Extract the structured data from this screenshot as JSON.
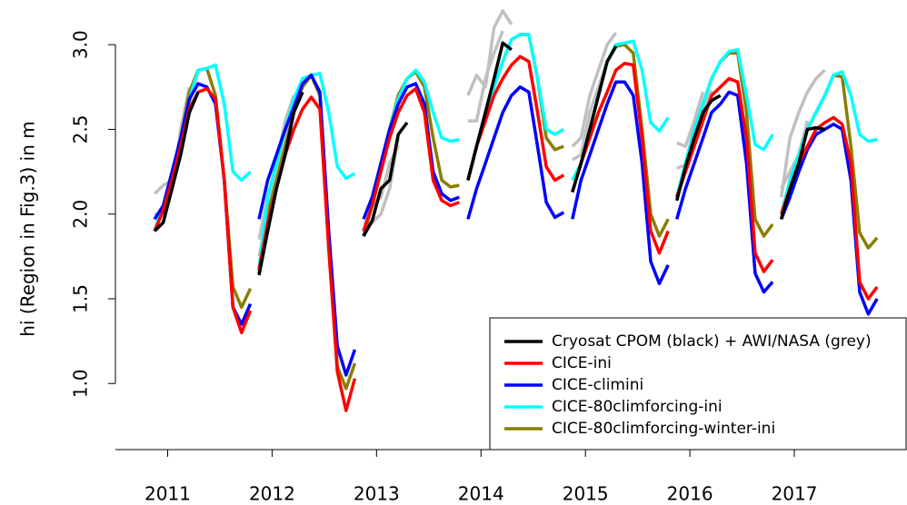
{
  "chart_data": {
    "type": "line",
    "ylabel": "hi (Region in Fig.3) in m",
    "x": [
      [
        2010.875,
        2010.958,
        2011.042,
        2011.125,
        2011.208,
        2011.292,
        2011.375,
        2011.458,
        2011.542,
        2011.625,
        2011.708,
        2011.792
      ],
      [
        2011.875,
        2011.958,
        2012.042,
        2012.125,
        2012.208,
        2012.292,
        2012.375,
        2012.458,
        2012.542,
        2012.625,
        2012.708,
        2012.792
      ],
      [
        2012.875,
        2012.958,
        2013.042,
        2013.125,
        2013.208,
        2013.292,
        2013.375,
        2013.458,
        2013.542,
        2013.625,
        2013.708,
        2013.792
      ],
      [
        2013.875,
        2013.958,
        2014.042,
        2014.125,
        2014.208,
        2014.292,
        2014.375,
        2014.458,
        2014.542,
        2014.625,
        2014.708,
        2014.792
      ],
      [
        2014.875,
        2014.958,
        2015.042,
        2015.125,
        2015.208,
        2015.292,
        2015.375,
        2015.458,
        2015.542,
        2015.625,
        2015.708,
        2015.792
      ],
      [
        2015.875,
        2015.958,
        2016.042,
        2016.125,
        2016.208,
        2016.292,
        2016.375,
        2016.458,
        2016.542,
        2016.625,
        2016.708,
        2016.792
      ],
      [
        2016.875,
        2016.958,
        2017.042,
        2017.125,
        2017.208,
        2017.292,
        2017.375,
        2017.458,
        2017.542,
        2017.625,
        2017.708,
        2017.792
      ]
    ],
    "series": [
      {
        "name": "Cryosat CPOM (black) + AWI/NASA (grey)",
        "color": "#000000",
        "values": [
          [
            1.9,
            1.95,
            2.15,
            2.35,
            2.6,
            2.72,
            null,
            null,
            null,
            null,
            null,
            null
          ],
          [
            1.64,
            1.9,
            2.15,
            2.35,
            2.6,
            2.72,
            null,
            null,
            null,
            null,
            null,
            null
          ],
          [
            1.87,
            1.96,
            2.15,
            2.2,
            2.47,
            2.54,
            null,
            null,
            null,
            null,
            null,
            null
          ],
          [
            2.2,
            2.4,
            2.6,
            2.8,
            3.01,
            2.97,
            null,
            null,
            null,
            null,
            null,
            null
          ],
          [
            2.13,
            2.3,
            2.5,
            2.7,
            2.9,
            2.99,
            null,
            null,
            null,
            null,
            null,
            null
          ],
          [
            2.08,
            2.28,
            2.45,
            2.6,
            2.67,
            2.7,
            null,
            null,
            null,
            null,
            null,
            null
          ],
          [
            1.97,
            2.15,
            2.3,
            2.5,
            2.51,
            2.5,
            null,
            null,
            null,
            null,
            null,
            null
          ]
        ]
      },
      {
        "name": "CICE-ini",
        "color": "#ff0000",
        "values": [
          [
            1.9,
            2.02,
            2.2,
            2.4,
            2.62,
            2.72,
            2.74,
            2.68,
            2.2,
            1.45,
            1.3,
            1.43
          ],
          [
            1.67,
            1.95,
            2.15,
            2.35,
            2.5,
            2.62,
            2.69,
            2.62,
            1.8,
            1.07,
            0.84,
            1.03
          ],
          [
            1.9,
            2.05,
            2.25,
            2.45,
            2.6,
            2.7,
            2.74,
            2.6,
            2.2,
            2.08,
            2.05,
            2.07
          ],
          [
            2.2,
            2.4,
            2.55,
            2.7,
            2.8,
            2.88,
            2.93,
            2.9,
            2.6,
            2.28,
            2.2,
            2.23
          ],
          [
            2.13,
            2.3,
            2.45,
            2.6,
            2.72,
            2.85,
            2.89,
            2.88,
            2.45,
            1.9,
            1.77,
            1.9
          ],
          [
            2.1,
            2.25,
            2.4,
            2.55,
            2.7,
            2.75,
            2.8,
            2.78,
            2.45,
            1.77,
            1.66,
            1.73
          ],
          [
            2.0,
            2.15,
            2.3,
            2.4,
            2.5,
            2.54,
            2.57,
            2.53,
            2.3,
            1.6,
            1.5,
            1.57
          ]
        ]
      },
      {
        "name": "CICE-climini",
        "color": "#0000ff",
        "values": [
          [
            1.97,
            2.05,
            2.25,
            2.45,
            2.68,
            2.77,
            2.75,
            2.65,
            2.2,
            1.45,
            1.35,
            1.47
          ],
          [
            1.97,
            2.2,
            2.35,
            2.5,
            2.63,
            2.77,
            2.82,
            2.72,
            1.9,
            1.22,
            1.05,
            1.2
          ],
          [
            1.97,
            2.1,
            2.3,
            2.5,
            2.65,
            2.75,
            2.77,
            2.65,
            2.25,
            2.12,
            2.08,
            2.1
          ],
          [
            1.97,
            2.15,
            2.3,
            2.45,
            2.6,
            2.7,
            2.75,
            2.72,
            2.4,
            2.07,
            1.98,
            2.01
          ],
          [
            1.97,
            2.2,
            2.35,
            2.5,
            2.65,
            2.78,
            2.78,
            2.7,
            2.3,
            1.72,
            1.59,
            1.7
          ],
          [
            1.97,
            2.15,
            2.3,
            2.45,
            2.6,
            2.65,
            2.72,
            2.7,
            2.3,
            1.65,
            1.54,
            1.6
          ],
          [
            1.97,
            2.1,
            2.25,
            2.38,
            2.47,
            2.5,
            2.53,
            2.5,
            2.2,
            1.54,
            1.41,
            1.5
          ]
        ]
      },
      {
        "name": "CICE-80climforcing-ini",
        "color": "#00ffff",
        "values": [
          [
            1.9,
            2.05,
            2.2,
            2.45,
            2.68,
            2.85,
            2.86,
            2.88,
            2.65,
            2.25,
            2.2,
            2.25
          ],
          [
            1.68,
            2.1,
            2.3,
            2.5,
            2.68,
            2.8,
            2.82,
            2.83,
            2.6,
            2.28,
            2.21,
            2.24
          ],
          [
            1.9,
            2.05,
            2.3,
            2.5,
            2.68,
            2.8,
            2.85,
            2.78,
            2.6,
            2.45,
            2.43,
            2.44
          ],
          [
            2.2,
            2.4,
            2.6,
            2.75,
            2.9,
            3.03,
            3.06,
            3.06,
            2.8,
            2.5,
            2.47,
            2.5
          ],
          [
            2.2,
            2.3,
            2.5,
            2.7,
            2.9,
            3.0,
            3.01,
            3.02,
            2.85,
            2.54,
            2.49,
            2.57
          ],
          [
            2.1,
            2.3,
            2.5,
            2.65,
            2.8,
            2.9,
            2.96,
            2.97,
            2.7,
            2.41,
            2.38,
            2.47
          ],
          [
            2.0,
            2.2,
            2.35,
            2.5,
            2.6,
            2.7,
            2.82,
            2.84,
            2.7,
            2.47,
            2.43,
            2.44
          ]
        ]
      },
      {
        "name": "CICE-80climforcing-winter-ini",
        "color": "#8b7d00",
        "values": [
          [
            1.9,
            2.05,
            2.2,
            2.45,
            2.72,
            2.85,
            2.86,
            2.7,
            2.2,
            1.57,
            1.45,
            1.56
          ],
          [
            1.65,
            2.0,
            2.2,
            2.4,
            2.6,
            2.75,
            2.82,
            2.7,
            1.8,
            1.1,
            0.97,
            1.12
          ],
          [
            1.87,
            2.05,
            2.3,
            2.5,
            2.7,
            2.8,
            2.84,
            2.75,
            2.45,
            2.2,
            2.16,
            2.17
          ],
          [
            2.2,
            2.4,
            2.6,
            2.75,
            2.9,
            3.03,
            3.06,
            3.06,
            2.8,
            2.45,
            2.38,
            2.4
          ],
          [
            2.13,
            2.3,
            2.5,
            2.7,
            2.9,
            2.99,
            3.0,
            2.95,
            2.5,
            2.0,
            1.87,
            1.97
          ],
          [
            2.1,
            2.3,
            2.5,
            2.65,
            2.8,
            2.9,
            2.95,
            2.95,
            2.6,
            1.97,
            1.87,
            1.94
          ],
          [
            1.97,
            2.2,
            2.35,
            2.5,
            2.6,
            2.7,
            2.82,
            2.81,
            2.4,
            1.89,
            1.8,
            1.86
          ]
        ]
      },
      {
        "color": "#c0c0c0",
        "values": [
          [
            2.12,
            2.17,
            2.2,
            2.35,
            2.65,
            2.85,
            null,
            null,
            null,
            null,
            null,
            null
          ],
          [
            1.85,
            2.1,
            2.3,
            2.55,
            2.7,
            null,
            null,
            null,
            null,
            null,
            null,
            null
          ],
          [
            1.9,
            2.05,
            2.1,
            2.3,
            2.4,
            null,
            null,
            null,
            null,
            null,
            null,
            null
          ],
          [
            2.7,
            2.82,
            2.75,
            3.1,
            3.2,
            3.12,
            null,
            null,
            null,
            null,
            null,
            null
          ],
          [
            2.4,
            2.45,
            2.7,
            2.85,
            3.0,
            3.07,
            null,
            null,
            null,
            null,
            null,
            null
          ],
          [
            2.27,
            2.29,
            2.45,
            2.62,
            2.73,
            null,
            null,
            null,
            null,
            null,
            null,
            null
          ],
          [
            2.1,
            2.45,
            2.6,
            2.72,
            2.8,
            2.85,
            null,
            null,
            null,
            null,
            null,
            null
          ]
        ]
      },
      {
        "color": "#c0c0c0",
        "values": [
          [
            2.0,
            2.0,
            2.15,
            2.5,
            2.75,
            null,
            null,
            null,
            null,
            null,
            null,
            null
          ],
          [
            1.75,
            2.0,
            2.25,
            2.45,
            2.65,
            null,
            null,
            null,
            null,
            null,
            null,
            null
          ],
          [
            1.95,
            1.95,
            2.0,
            2.15,
            2.45,
            null,
            null,
            null,
            null,
            null,
            null,
            null
          ],
          [
            2.55,
            2.55,
            2.8,
            2.95,
            3.08,
            null,
            null,
            null,
            null,
            null,
            null,
            null
          ],
          [
            2.32,
            2.35,
            2.6,
            2.75,
            2.9,
            null,
            null,
            null,
            null,
            null,
            null,
            null
          ],
          [
            2.42,
            2.4,
            2.55,
            2.72,
            null,
            null,
            null,
            null,
            null,
            null,
            null,
            null
          ],
          [
            2.15,
            2.25,
            2.35,
            2.55,
            null,
            null,
            null,
            null,
            null,
            null,
            null,
            null
          ]
        ]
      }
    ],
    "xlim": [
      2010.5,
      2018.07
    ],
    "xticks": [
      2011,
      2012,
      2013,
      2014,
      2015,
      2016,
      2017
    ],
    "ylim": [
      0.61,
      3.21
    ],
    "yticks": [
      {
        "value": 1,
        "label": "1.0"
      },
      {
        "value": 1.5,
        "label": "1.5"
      },
      {
        "value": 2,
        "label": "2.0"
      },
      {
        "value": 2.5,
        "label": "2.5"
      },
      {
        "value": 3,
        "label": "3.0"
      }
    ],
    "legend": "bottomright"
  }
}
